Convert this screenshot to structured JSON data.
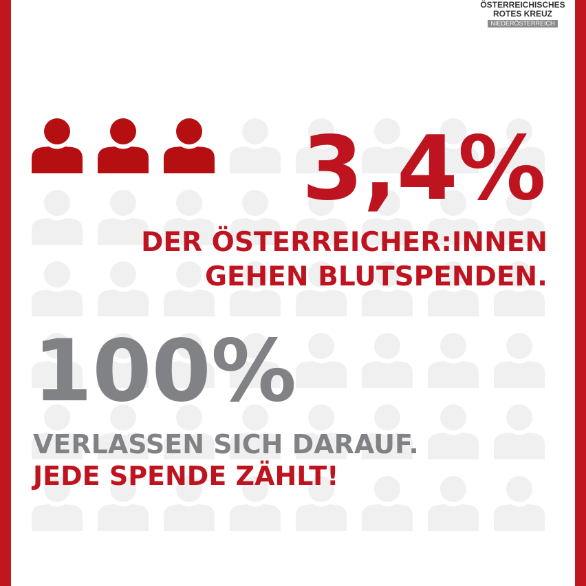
{
  "logo": {
    "line1": "ÖSTERREICHISCHES",
    "line2": "ROTES KREUZ",
    "region": "NIEDERÖSTERREICH"
  },
  "stat1": {
    "value": "3,4%",
    "line1": "DER ÖSTERREICHER:INNEN",
    "line2": "GEHEN BLUTSPENDEN."
  },
  "stat2": {
    "value": "100%",
    "line1": "VERLASSEN SICH DARAUF.",
    "slogan": "JEDE SPENDE ZÄHLT!"
  },
  "icon_grid": {
    "icon": "person-icon",
    "rows": 6,
    "columns": 8,
    "highlighted": 3,
    "highlight_color": "#b50f12",
    "base_color": "#f0f0f0"
  },
  "colors": {
    "brand_red": "#c0161f",
    "gray": "#808285"
  }
}
